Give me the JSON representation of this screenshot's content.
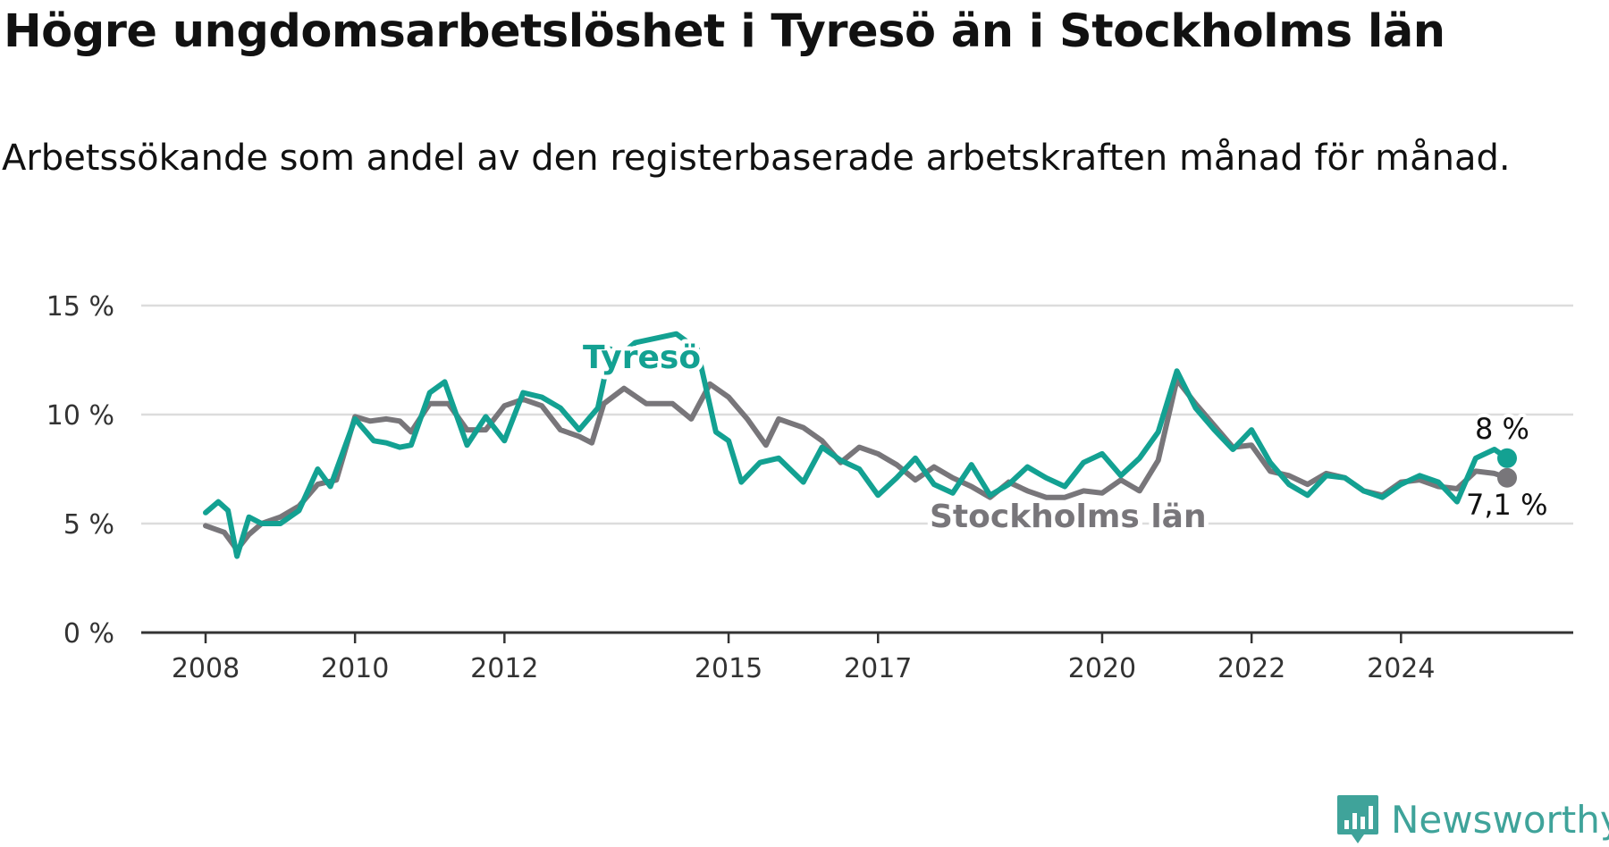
{
  "title": "Högre ungdomsarbetslöshet i Tyresö än i Stockholms län",
  "subtitle": "Arbetssökande som andel av den registerbaserade arbetskraften månad för månad.",
  "logo": {
    "text": "Newsworthy",
    "icon": "newsworthy-logo-icon",
    "color": "#3fa39a"
  },
  "chart_data": {
    "type": "line",
    "title": "Högre ungdomsarbetslöshet i Tyresö än i Stockholms län",
    "subtitle": "Arbetssökande som andel av den registerbaserade arbetskraften månad för månad.",
    "xlabel": "",
    "ylabel": "",
    "xlim": [
      2008,
      2026
    ],
    "ylim": [
      0,
      15
    ],
    "y_ticks": [
      0,
      5,
      10,
      15
    ],
    "y_tick_labels": [
      "0 %",
      "5 %",
      "10 %",
      "15 %"
    ],
    "x_ticks": [
      2008,
      2010,
      2012,
      2015,
      2017,
      2020,
      2022,
      2024
    ],
    "x_tick_labels": [
      "2008",
      "2010",
      "2012",
      "2015",
      "2017",
      "2020",
      "2022",
      "2024"
    ],
    "grid": "horizontal",
    "legend": "inline labels",
    "series": [
      {
        "name": "Stockholms län",
        "color": "#78767a",
        "end_label": "7,1 %",
        "points": [
          [
            2008.0,
            4.9
          ],
          [
            2008.25,
            4.6
          ],
          [
            2008.42,
            3.8
          ],
          [
            2008.58,
            4.5
          ],
          [
            2008.75,
            5.0
          ],
          [
            2009.0,
            5.3
          ],
          [
            2009.25,
            5.8
          ],
          [
            2009.5,
            6.8
          ],
          [
            2009.75,
            7.0
          ],
          [
            2010.0,
            9.9
          ],
          [
            2010.2,
            9.7
          ],
          [
            2010.42,
            9.8
          ],
          [
            2010.6,
            9.7
          ],
          [
            2010.75,
            9.2
          ],
          [
            2011.0,
            10.5
          ],
          [
            2011.25,
            10.5
          ],
          [
            2011.5,
            9.3
          ],
          [
            2011.75,
            9.3
          ],
          [
            2012.0,
            10.4
          ],
          [
            2012.25,
            10.7
          ],
          [
            2012.5,
            10.4
          ],
          [
            2012.75,
            9.3
          ],
          [
            2013.0,
            9.0
          ],
          [
            2013.17,
            8.7
          ],
          [
            2013.33,
            10.5
          ],
          [
            2013.6,
            11.2
          ],
          [
            2013.9,
            10.5
          ],
          [
            2014.25,
            10.5
          ],
          [
            2014.5,
            9.8
          ],
          [
            2014.75,
            11.4
          ],
          [
            2015.0,
            10.8
          ],
          [
            2015.25,
            9.8
          ],
          [
            2015.5,
            8.6
          ],
          [
            2015.67,
            9.8
          ],
          [
            2016.0,
            9.4
          ],
          [
            2016.25,
            8.8
          ],
          [
            2016.5,
            7.8
          ],
          [
            2016.75,
            8.5
          ],
          [
            2017.0,
            8.2
          ],
          [
            2017.25,
            7.7
          ],
          [
            2017.5,
            7.0
          ],
          [
            2017.75,
            7.6
          ],
          [
            2018.0,
            7.1
          ],
          [
            2018.25,
            6.7
          ],
          [
            2018.5,
            6.2
          ],
          [
            2018.75,
            6.9
          ],
          [
            2019.0,
            6.5
          ],
          [
            2019.25,
            6.2
          ],
          [
            2019.5,
            6.2
          ],
          [
            2019.75,
            6.5
          ],
          [
            2020.0,
            6.4
          ],
          [
            2020.25,
            7.0
          ],
          [
            2020.5,
            6.5
          ],
          [
            2020.75,
            7.9
          ],
          [
            2021.0,
            11.6
          ],
          [
            2021.25,
            10.5
          ],
          [
            2021.5,
            9.5
          ],
          [
            2021.75,
            8.5
          ],
          [
            2022.0,
            8.6
          ],
          [
            2022.25,
            7.4
          ],
          [
            2022.5,
            7.2
          ],
          [
            2022.75,
            6.8
          ],
          [
            2023.0,
            7.3
          ],
          [
            2023.25,
            7.1
          ],
          [
            2023.5,
            6.5
          ],
          [
            2023.75,
            6.3
          ],
          [
            2024.0,
            6.9
          ],
          [
            2024.25,
            7.0
          ],
          [
            2024.5,
            6.7
          ],
          [
            2024.75,
            6.6
          ],
          [
            2025.0,
            7.4
          ],
          [
            2025.25,
            7.3
          ],
          [
            2025.42,
            7.1
          ]
        ]
      },
      {
        "name": "Tyresö",
        "color": "#13a192",
        "end_label": "8 %",
        "points": [
          [
            2008.0,
            5.5
          ],
          [
            2008.17,
            6.0
          ],
          [
            2008.3,
            5.6
          ],
          [
            2008.42,
            3.5
          ],
          [
            2008.58,
            5.3
          ],
          [
            2008.75,
            5.0
          ],
          [
            2009.0,
            5.0
          ],
          [
            2009.25,
            5.6
          ],
          [
            2009.5,
            7.5
          ],
          [
            2009.67,
            6.7
          ],
          [
            2010.0,
            9.8
          ],
          [
            2010.25,
            8.8
          ],
          [
            2010.42,
            8.7
          ],
          [
            2010.6,
            8.5
          ],
          [
            2010.75,
            8.6
          ],
          [
            2011.0,
            11.0
          ],
          [
            2011.2,
            11.5
          ],
          [
            2011.5,
            8.6
          ],
          [
            2011.75,
            9.9
          ],
          [
            2012.0,
            8.8
          ],
          [
            2012.25,
            11.0
          ],
          [
            2012.5,
            10.8
          ],
          [
            2012.75,
            10.3
          ],
          [
            2013.0,
            9.3
          ],
          [
            2013.25,
            10.3
          ],
          [
            2013.42,
            13.0
          ],
          [
            2013.58,
            12.8
          ],
          [
            2013.75,
            13.3
          ],
          [
            2014.3,
            13.7
          ],
          [
            2014.58,
            13.0
          ],
          [
            2014.83,
            9.2
          ],
          [
            2015.0,
            8.8
          ],
          [
            2015.17,
            6.9
          ],
          [
            2015.42,
            7.8
          ],
          [
            2015.67,
            8.0
          ],
          [
            2016.0,
            6.9
          ],
          [
            2016.25,
            8.5
          ],
          [
            2016.5,
            7.9
          ],
          [
            2016.75,
            7.5
          ],
          [
            2017.0,
            6.3
          ],
          [
            2017.25,
            7.1
          ],
          [
            2017.5,
            8.0
          ],
          [
            2017.75,
            6.8
          ],
          [
            2018.0,
            6.4
          ],
          [
            2018.25,
            7.7
          ],
          [
            2018.5,
            6.3
          ],
          [
            2018.75,
            6.8
          ],
          [
            2019.0,
            7.6
          ],
          [
            2019.25,
            7.1
          ],
          [
            2019.5,
            6.7
          ],
          [
            2019.75,
            7.8
          ],
          [
            2020.0,
            8.2
          ],
          [
            2020.25,
            7.2
          ],
          [
            2020.5,
            8.0
          ],
          [
            2020.75,
            9.2
          ],
          [
            2021.0,
            12.0
          ],
          [
            2021.25,
            10.3
          ],
          [
            2021.5,
            9.3
          ],
          [
            2021.75,
            8.4
          ],
          [
            2022.0,
            9.3
          ],
          [
            2022.25,
            7.8
          ],
          [
            2022.5,
            6.8
          ],
          [
            2022.75,
            6.3
          ],
          [
            2023.0,
            7.2
          ],
          [
            2023.25,
            7.1
          ],
          [
            2023.5,
            6.5
          ],
          [
            2023.75,
            6.2
          ],
          [
            2024.0,
            6.8
          ],
          [
            2024.25,
            7.2
          ],
          [
            2024.5,
            6.9
          ],
          [
            2024.75,
            6.0
          ],
          [
            2025.0,
            8.0
          ],
          [
            2025.25,
            8.4
          ],
          [
            2025.42,
            8.0
          ]
        ]
      }
    ]
  }
}
